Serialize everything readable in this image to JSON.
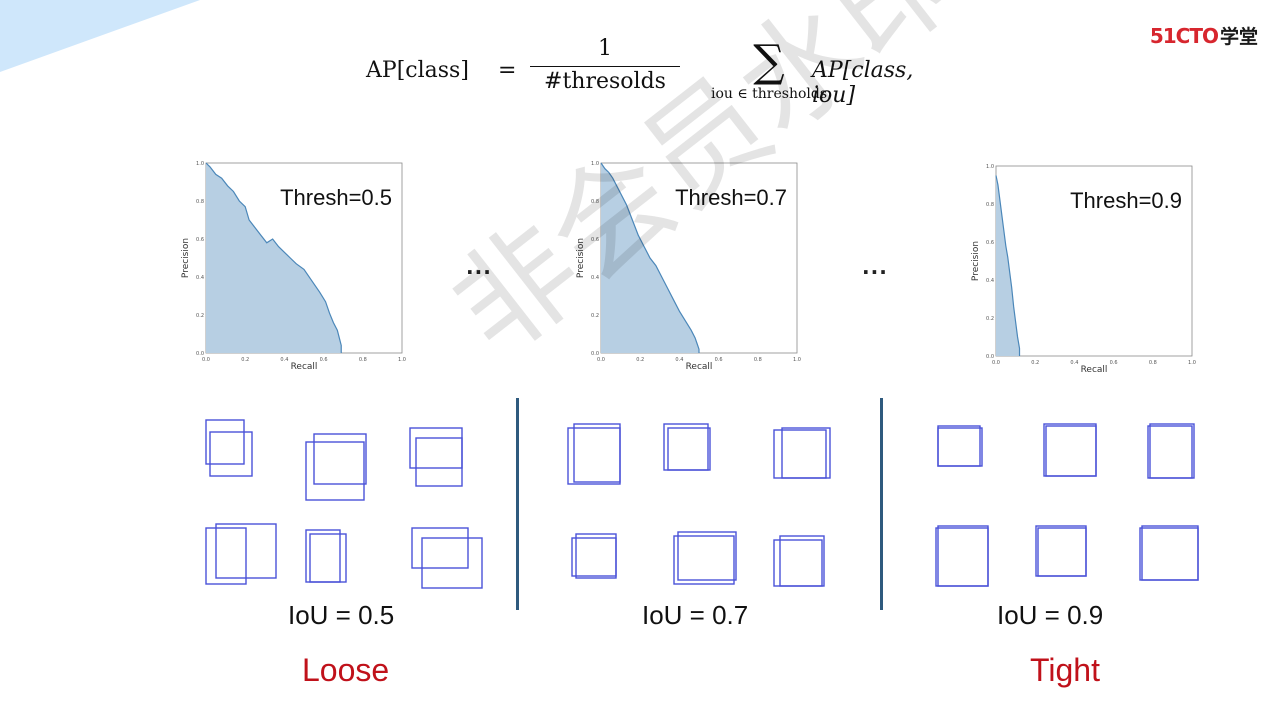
{
  "formula": {
    "lhs": "AP[class]",
    "equals": "=",
    "numerator": "1",
    "denominator": "#thresolds",
    "sum_symbol": "∑",
    "sum_subscript": "iou ∈ thresholds",
    "rhs_prefix": "AP",
    "rhs_args": "[class, iou]"
  },
  "logo": {
    "brand": "51CTO",
    "suffix": "学堂"
  },
  "watermark": "非会员水印",
  "ellipsis": "...",
  "columns": [
    {
      "iou_label": "IoU = 0.5",
      "caption": "Loose"
    },
    {
      "iou_label": "IoU = 0.7",
      "caption": ""
    },
    {
      "iou_label": "IoU = 0.9",
      "caption": "Tight"
    }
  ],
  "chart_data": [
    {
      "type": "area",
      "title": "Thresh=0.5",
      "xlabel": "Recall",
      "ylabel": "Precision",
      "xlim": [
        0,
        1
      ],
      "ylim": [
        0,
        1
      ],
      "xticks": [
        "0.0",
        "0.2",
        "0.4",
        "0.6",
        "0.8",
        "1.0"
      ],
      "yticks": [
        "0.0",
        "0.2",
        "0.4",
        "0.6",
        "0.8",
        "1.0"
      ],
      "fill_color": "#b7cfe3",
      "line_color": "#4b87b9",
      "x": [
        0,
        0.02,
        0.05,
        0.08,
        0.11,
        0.14,
        0.17,
        0.2,
        0.22,
        0.25,
        0.28,
        0.31,
        0.34,
        0.37,
        0.4,
        0.43,
        0.46,
        0.5,
        0.54,
        0.58,
        0.61,
        0.63,
        0.65,
        0.67,
        0.68,
        0.69,
        0.69
      ],
      "y": [
        1.0,
        0.98,
        0.94,
        0.92,
        0.88,
        0.85,
        0.8,
        0.77,
        0.7,
        0.66,
        0.62,
        0.58,
        0.6,
        0.56,
        0.53,
        0.5,
        0.47,
        0.44,
        0.38,
        0.32,
        0.27,
        0.21,
        0.16,
        0.12,
        0.08,
        0.04,
        0.0
      ]
    },
    {
      "type": "area",
      "title": "Thresh=0.7",
      "xlabel": "Recall",
      "ylabel": "Precision",
      "xlim": [
        0,
        1
      ],
      "ylim": [
        0,
        1
      ],
      "xticks": [
        "0.0",
        "0.2",
        "0.4",
        "0.6",
        "0.8",
        "1.0"
      ],
      "yticks": [
        "0.0",
        "0.2",
        "0.4",
        "0.6",
        "0.8",
        "1.0"
      ],
      "fill_color": "#b7cfe3",
      "line_color": "#4b87b9",
      "x": [
        0,
        0.02,
        0.04,
        0.06,
        0.08,
        0.1,
        0.13,
        0.16,
        0.19,
        0.22,
        0.25,
        0.28,
        0.31,
        0.34,
        0.37,
        0.4,
        0.43,
        0.46,
        0.48,
        0.49,
        0.5,
        0.5
      ],
      "y": [
        1.0,
        0.97,
        0.95,
        0.92,
        0.88,
        0.84,
        0.78,
        0.7,
        0.62,
        0.56,
        0.5,
        0.46,
        0.4,
        0.34,
        0.28,
        0.22,
        0.17,
        0.12,
        0.08,
        0.05,
        0.02,
        0.0
      ]
    },
    {
      "type": "area",
      "title": "Thresh=0.9",
      "xlabel": "Recall",
      "ylabel": "Precision",
      "xlim": [
        0,
        1
      ],
      "ylim": [
        0,
        1
      ],
      "xticks": [
        "0.0",
        "0.2",
        "0.4",
        "0.6",
        "0.8",
        "1.0"
      ],
      "yticks": [
        "0.0",
        "0.2",
        "0.4",
        "0.6",
        "0.8",
        "1.0"
      ],
      "fill_color": "#b7cfe3",
      "line_color": "#4b87b9",
      "x": [
        0,
        0.01,
        0.02,
        0.03,
        0.04,
        0.05,
        0.06,
        0.07,
        0.08,
        0.09,
        0.1,
        0.11,
        0.12,
        0.12
      ],
      "y": [
        0.95,
        0.9,
        0.82,
        0.74,
        0.66,
        0.58,
        0.52,
        0.44,
        0.36,
        0.26,
        0.18,
        0.1,
        0.04,
        0.0
      ]
    }
  ]
}
